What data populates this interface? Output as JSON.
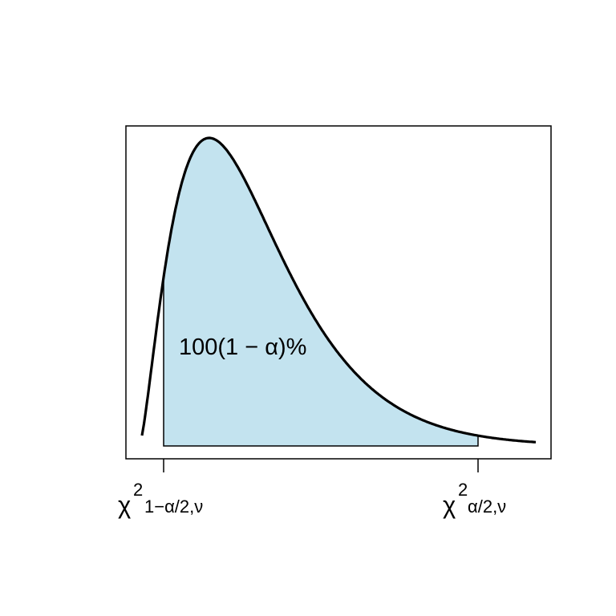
{
  "chart_data": {
    "type": "area",
    "distribution": "chi-square density",
    "grid": false,
    "axes": {
      "y_ticks": false,
      "x_ticks": [
        {
          "position": "lower",
          "symbol": "χ",
          "superscript": "2",
          "subscript": "1−α/2,ν"
        },
        {
          "position": "upper",
          "symbol": "χ",
          "superscript": "2",
          "subscript": "α/2,ν"
        }
      ]
    },
    "shaded_region": {
      "from": "χ²(1−α/2,ν)",
      "to": "χ²(α/2,ν)",
      "fill_color": "#c3e3ef",
      "label": "100(1 − α)%"
    },
    "curve_color": "#000000"
  }
}
